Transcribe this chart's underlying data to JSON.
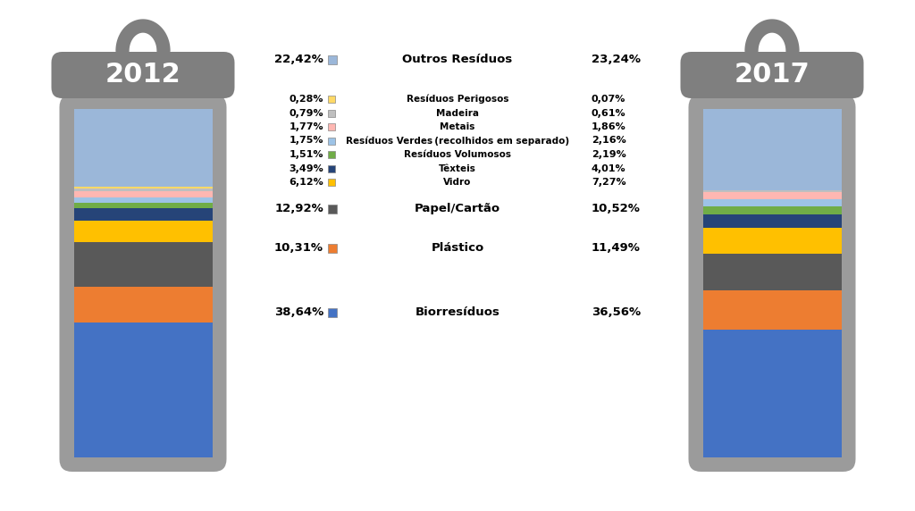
{
  "year_left": "2012",
  "year_right": "2017",
  "values_2012": [
    38.64,
    10.31,
    12.92,
    6.12,
    3.49,
    1.51,
    1.75,
    1.77,
    0.79,
    0.28,
    22.42
  ],
  "values_2017": [
    36.56,
    11.49,
    10.52,
    7.27,
    4.01,
    2.19,
    2.16,
    1.86,
    0.61,
    0.07,
    23.24
  ],
  "colors_ordered": [
    "#4472C4",
    "#ED7D31",
    "#595959",
    "#FFC000",
    "#264478",
    "#70AD47",
    "#9DC3E6",
    "#FFB7B2",
    "#BFBFBF",
    "#FFD966",
    "#9BB7D9"
  ],
  "bg_color": "#FFFFFF",
  "bin_outer_color": "#9B9B9B",
  "bin_lid_color": "#7F7F7F",
  "bin_handle_color": "#7F7F7F",
  "year_text_color": "#FFFFFF",
  "legend_items": [
    {
      "left_pct": "22,42%",
      "color_idx": 10,
      "label": "Outros Resíduos",
      "right_pct": "23,24%",
      "small": false
    },
    null,
    {
      "left_pct": "0,28%",
      "color_idx": 9,
      "label": "Resíduos Perigosos",
      "right_pct": "0,07%",
      "small": true
    },
    {
      "left_pct": "0,79%",
      "color_idx": 8,
      "label": "Madeira",
      "right_pct": "0,61%",
      "small": true
    },
    {
      "left_pct": "1,77%",
      "color_idx": 7,
      "label": "Metais",
      "right_pct": "1,86%",
      "small": true
    },
    {
      "left_pct": "1,75%",
      "color_idx": 6,
      "label": "Resíduos Verdes (recolhidos em separado)",
      "right_pct": "2,16%",
      "small": true
    },
    {
      "left_pct": "1,51%",
      "color_idx": 5,
      "label": "Resíduos Volumosos",
      "right_pct": "2,19%",
      "small": true
    },
    {
      "left_pct": "3,49%",
      "color_idx": 4,
      "label": "Têxteis",
      "right_pct": "4,01%",
      "small": true
    },
    {
      "left_pct": "6,12%",
      "color_idx": 3,
      "label": "Vidro",
      "right_pct": "7,27%",
      "small": true
    },
    null,
    {
      "left_pct": "12,92%",
      "color_idx": 2,
      "label": "Papel/Cartão",
      "right_pct": "10,52%",
      "small": false
    },
    null,
    {
      "left_pct": "10,31%",
      "color_idx": 1,
      "label": "Plástico",
      "right_pct": "11,49%",
      "small": false
    },
    null,
    null,
    null,
    {
      "left_pct": "38,64%",
      "color_idx": 0,
      "label": "Biorresíduos",
      "right_pct": "36,56%",
      "small": false
    }
  ]
}
